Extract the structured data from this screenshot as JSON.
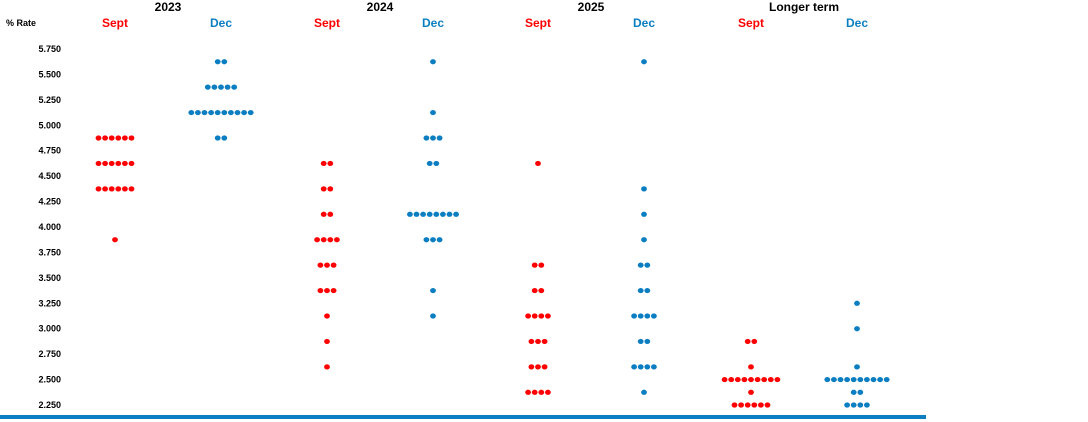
{
  "chart_data": {
    "type": "scatter",
    "ylabel": "% Rate",
    "ylim": [
      2.25,
      5.75
    ],
    "y_ticks": [
      "5.750",
      "5.500",
      "5.250",
      "5.000",
      "4.750",
      "4.500",
      "4.250",
      "4.000",
      "3.750",
      "3.500",
      "3.250",
      "3.000",
      "2.750",
      "2.500",
      "2.250"
    ],
    "groups": [
      {
        "year": "2023",
        "columns": [
          {
            "label": "Sept",
            "color": "#ff0000",
            "dots": [
              {
                "rate": 4.875,
                "count": 6
              },
              {
                "rate": 4.625,
                "count": 6
              },
              {
                "rate": 4.375,
                "count": 6
              },
              {
                "rate": 3.875,
                "count": 1
              }
            ]
          },
          {
            "label": "Dec",
            "color": "#0b7ec2",
            "dots": [
              {
                "rate": 5.625,
                "count": 2
              },
              {
                "rate": 5.375,
                "count": 5
              },
              {
                "rate": 5.125,
                "count": 10
              },
              {
                "rate": 4.875,
                "count": 2
              }
            ]
          }
        ]
      },
      {
        "year": "2024",
        "columns": [
          {
            "label": "Sept",
            "color": "#ff0000",
            "dots": [
              {
                "rate": 4.625,
                "count": 2
              },
              {
                "rate": 4.375,
                "count": 2
              },
              {
                "rate": 4.125,
                "count": 2
              },
              {
                "rate": 3.875,
                "count": 4
              },
              {
                "rate": 3.625,
                "count": 3
              },
              {
                "rate": 3.375,
                "count": 3
              },
              {
                "rate": 3.125,
                "count": 1
              },
              {
                "rate": 2.875,
                "count": 1
              },
              {
                "rate": 2.625,
                "count": 1
              }
            ]
          },
          {
            "label": "Dec",
            "color": "#0b7ec2",
            "dots": [
              {
                "rate": 5.625,
                "count": 1
              },
              {
                "rate": 5.125,
                "count": 1
              },
              {
                "rate": 4.875,
                "count": 3
              },
              {
                "rate": 4.625,
                "count": 2
              },
              {
                "rate": 4.125,
                "count": 8
              },
              {
                "rate": 3.875,
                "count": 3
              },
              {
                "rate": 3.375,
                "count": 1
              },
              {
                "rate": 3.125,
                "count": 1
              }
            ]
          }
        ]
      },
      {
        "year": "2025",
        "columns": [
          {
            "label": "Sept",
            "color": "#ff0000",
            "dots": [
              {
                "rate": 4.625,
                "count": 1
              },
              {
                "rate": 3.625,
                "count": 2
              },
              {
                "rate": 3.375,
                "count": 2
              },
              {
                "rate": 3.125,
                "count": 4
              },
              {
                "rate": 2.875,
                "count": 3
              },
              {
                "rate": 2.625,
                "count": 3
              },
              {
                "rate": 2.375,
                "count": 4
              }
            ]
          },
          {
            "label": "Dec",
            "color": "#0b7ec2",
            "dots": [
              {
                "rate": 5.625,
                "count": 1
              },
              {
                "rate": 4.375,
                "count": 1
              },
              {
                "rate": 4.125,
                "count": 1
              },
              {
                "rate": 3.875,
                "count": 1
              },
              {
                "rate": 3.625,
                "count": 2
              },
              {
                "rate": 3.375,
                "count": 2
              },
              {
                "rate": 3.125,
                "count": 4
              },
              {
                "rate": 2.875,
                "count": 2
              },
              {
                "rate": 2.625,
                "count": 4
              },
              {
                "rate": 2.375,
                "count": 1
              }
            ]
          }
        ]
      },
      {
        "year": "Longer term",
        "columns": [
          {
            "label": "Sept",
            "color": "#ff0000",
            "dots": [
              {
                "rate": 2.875,
                "count": 2
              },
              {
                "rate": 2.625,
                "count": 1
              },
              {
                "rate": 2.5,
                "count": 9
              },
              {
                "rate": 2.375,
                "count": 1
              },
              {
                "rate": 2.25,
                "count": 6
              }
            ]
          },
          {
            "label": "Dec",
            "color": "#0b7ec2",
            "dots": [
              {
                "rate": 3.25,
                "count": 1
              },
              {
                "rate": 3.0,
                "count": 1
              },
              {
                "rate": 2.625,
                "count": 1
              },
              {
                "rate": 2.5,
                "count": 10
              },
              {
                "rate": 2.375,
                "count": 2
              },
              {
                "rate": 2.25,
                "count": 4
              }
            ]
          }
        ]
      }
    ],
    "baseline_color": "#0b7ec2",
    "grid": false,
    "legend": "none"
  }
}
